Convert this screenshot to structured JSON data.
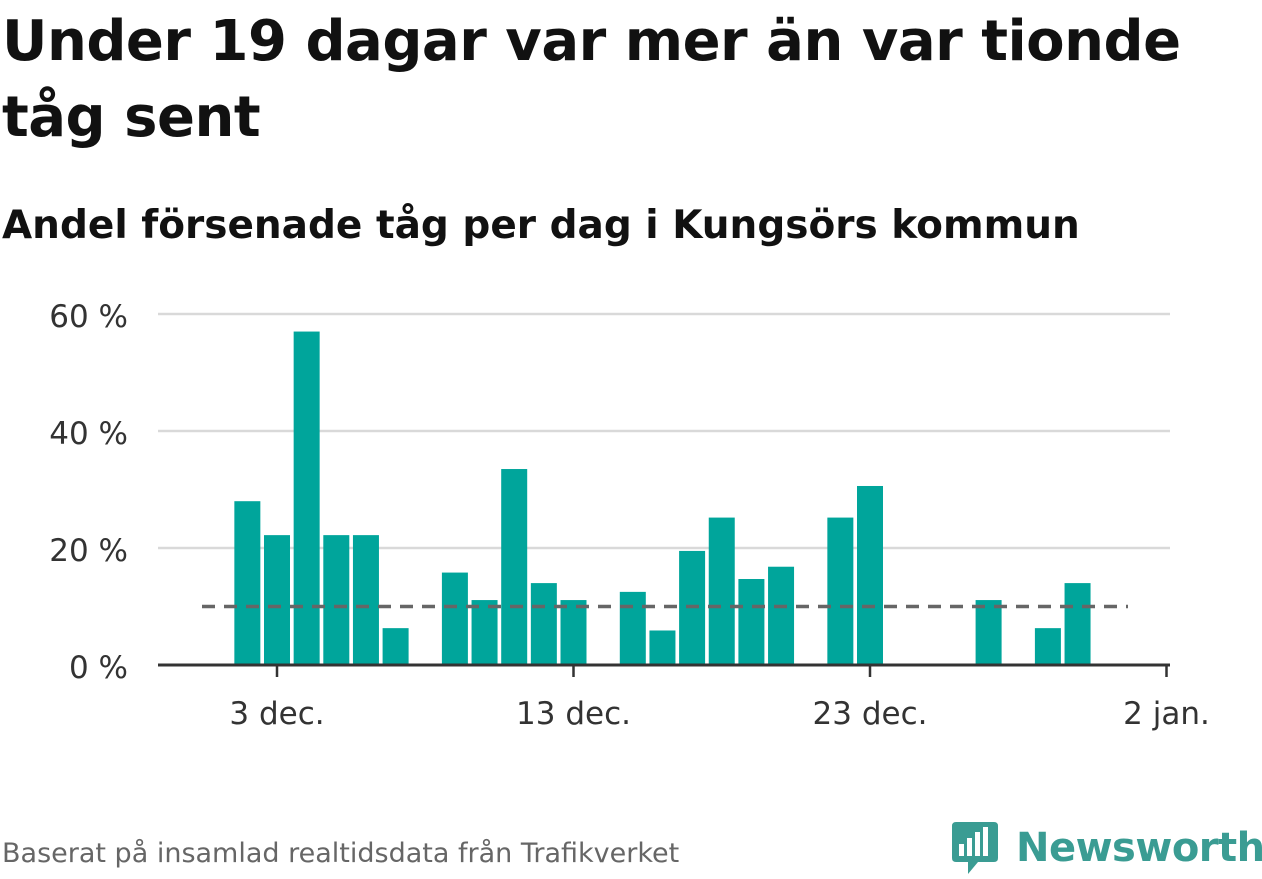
{
  "chart_data": {
    "type": "bar",
    "title": "Under 19 dagar var mer än var tionde tåg sent",
    "subtitle": "Andel försenade tåg per dag i Kungsörs kommun",
    "x": [
      "2023-11-30",
      "2023-12-01",
      "2023-12-02",
      "2023-12-03",
      "2023-12-04",
      "2023-12-05",
      "2023-12-06",
      "2023-12-07",
      "2023-12-08",
      "2023-12-09",
      "2023-12-10",
      "2023-12-11",
      "2023-12-12",
      "2023-12-13",
      "2023-12-14",
      "2023-12-15",
      "2023-12-16",
      "2023-12-17",
      "2023-12-18",
      "2023-12-19",
      "2023-12-20",
      "2023-12-21",
      "2023-12-22",
      "2023-12-23",
      "2023-12-24",
      "2023-12-25",
      "2023-12-26",
      "2023-12-27",
      "2023-12-28",
      "2023-12-29",
      "2023-12-30",
      "2023-12-31",
      "2024-01-01",
      "2024-01-02"
    ],
    "values": [
      null,
      null,
      28,
      22.2,
      57,
      22.2,
      22.2,
      6.3,
      null,
      15.8,
      11.1,
      33.5,
      14,
      11.1,
      null,
      12.5,
      5.9,
      19.5,
      25.2,
      14.7,
      16.8,
      null,
      25.2,
      30.6,
      null,
      null,
      null,
      11.1,
      null,
      6.3,
      14,
      null,
      null,
      null
    ],
    "reference_line": 10,
    "ylim": [
      0,
      60
    ],
    "yticks": [
      0,
      20,
      40,
      60
    ],
    "ytick_labels": [
      "0 %",
      "20 %",
      "40 %",
      "60 %"
    ],
    "xticks": [
      "2023-12-03",
      "2023-12-13",
      "2023-12-23",
      "2024-01-02"
    ],
    "xtick_labels": [
      "3 dec.",
      "13 dec.",
      "23 dec.",
      "2 jan."
    ],
    "xlabel": "",
    "ylabel": "",
    "grid": true,
    "colors": {
      "bar": "#00a59b",
      "reference": "#666666",
      "grid": "#d9d9d9",
      "axis": "#333333",
      "tick_text": "#333333"
    }
  },
  "source": "Baserat på insamlad realtidsdata från Trafikverket",
  "logo": {
    "text": "Newsworthy",
    "icon": "newsworthy-logo-icon",
    "color": "#3a9c93"
  }
}
